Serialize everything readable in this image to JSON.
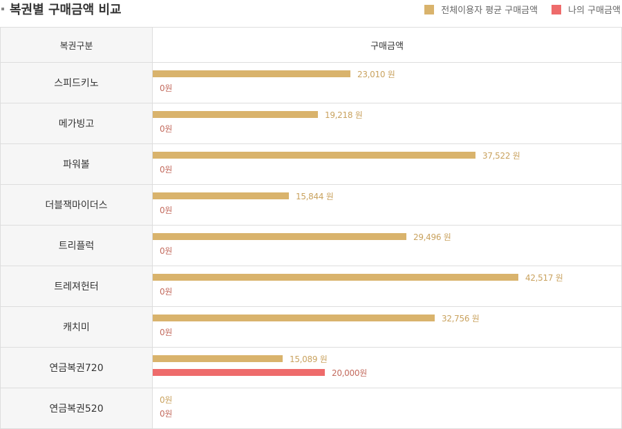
{
  "title": "복권별 구매금액 비교",
  "legend": {
    "avg_label": "전체이용자 평균 구매금액",
    "mine_label": "나의 구매금액"
  },
  "colors": {
    "avg": "#d9b36c",
    "mine": "#ee6b6b",
    "avg_text": "#c9a25e",
    "mine_text": "#c36a5d"
  },
  "table": {
    "col1": "복권구분",
    "col2": "구매금액"
  },
  "chart_data": {
    "type": "bar",
    "orientation": "horizontal",
    "categories": [
      "스피드키노",
      "메가빙고",
      "파워볼",
      "더블잭마이더스",
      "트리플럭",
      "트레져헌터",
      "캐치미",
      "연금복권720",
      "연금복권520"
    ],
    "series": [
      {
        "name": "전체이용자 평균 구매금액",
        "values": [
          23010,
          19218,
          37522,
          15844,
          29496,
          42517,
          32756,
          15089,
          0
        ],
        "labels": [
          "23,010 원",
          "19,218 원",
          "37,522 원",
          "15,844 원",
          "29,496 원",
          "42,517 원",
          "32,756 원",
          "15,089 원",
          "0원"
        ]
      },
      {
        "name": "나의 구매금액",
        "values": [
          0,
          0,
          0,
          0,
          0,
          0,
          0,
          20000,
          0
        ],
        "labels": [
          "0원",
          "0원",
          "0원",
          "0원",
          "0원",
          "0원",
          "0원",
          "20,000원",
          "0원"
        ]
      }
    ],
    "xlim": [
      0,
      45000
    ]
  }
}
